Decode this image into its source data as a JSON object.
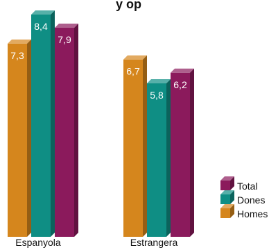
{
  "chart_data": {
    "type": "bar",
    "title": "",
    "title_fragment": "y op",
    "categories": [
      "Espanyola",
      "Estrangera"
    ],
    "series": [
      {
        "name": "Homes",
        "values": [
          7.3,
          6.7
        ],
        "color": "#d5861d"
      },
      {
        "name": "Dones",
        "values": [
          8.4,
          5.8
        ],
        "color": "#0f8e84"
      },
      {
        "name": "Total",
        "values": [
          7.9,
          6.2
        ],
        "color": "#8b1a5c"
      }
    ],
    "value_labels": [
      [
        "7,3",
        "6,7"
      ],
      [
        "8,4",
        "5,8"
      ],
      [
        "7,9",
        "6,2"
      ]
    ],
    "legend_order": [
      "Total",
      "Dones",
      "Homes"
    ],
    "legend_position": "bottom-right",
    "xlabel": "",
    "ylabel": "",
    "ylim": [
      0,
      9
    ],
    "grid": false,
    "style": "3d-bars"
  }
}
